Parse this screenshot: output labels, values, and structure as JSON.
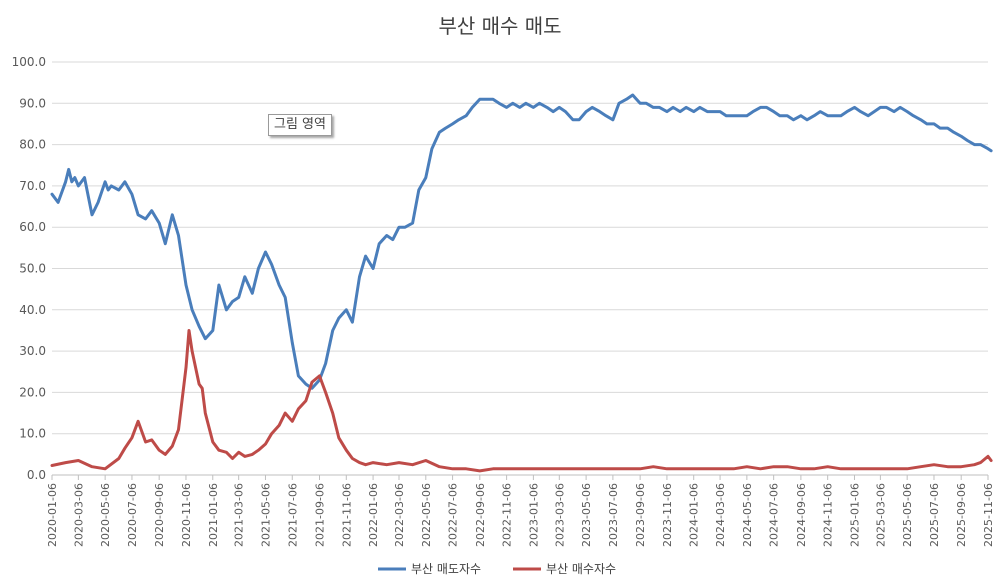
{
  "title": "부산 매수 매도",
  "annotation": "그림 영역",
  "chart_data": {
    "type": "line",
    "title": "부산 매수 매도",
    "xlabel": "",
    "ylabel": "",
    "ylim": [
      0,
      100
    ],
    "yticks": [
      "0.0",
      "10.0",
      "20.0",
      "30.0",
      "40.0",
      "50.0",
      "60.0",
      "70.0",
      "80.0",
      "90.0",
      "100.0"
    ],
    "xtick_labels": [
      "2020-01-06",
      "2020-03-06",
      "2020-05-06",
      "2020-07-06",
      "2020-09-06",
      "2020-11-06",
      "2021-01-06",
      "2021-03-06",
      "2021-05-06",
      "2021-07-06",
      "2021-09-06",
      "2021-11-06",
      "2022-01-06",
      "2022-03-06",
      "2022-05-06",
      "2022-07-06",
      "2022-09-06",
      "2022-11-06",
      "2023-01-06",
      "2023-03-06",
      "2023-05-06",
      "2023-07-06",
      "2023-09-06",
      "2023-11-06",
      "2024-01-06",
      "2024-03-06",
      "2024-05-06",
      "2024-07-06",
      "2024-09-06",
      "2024-11-06",
      "2025-01-06",
      "2025-03-06",
      "2025-05-06",
      "2025-07-06",
      "2025-09-06",
      "2025-11-06"
    ],
    "grid": true,
    "legend_position": "bottom",
    "series": [
      {
        "name": "부산 매도자수",
        "color": "#4a7ebb",
        "points": [
          [
            "2020-01-06",
            68
          ],
          [
            "2020-01-20",
            66
          ],
          [
            "2020-02-06",
            71
          ],
          [
            "2020-02-13",
            74
          ],
          [
            "2020-02-20",
            71
          ],
          [
            "2020-02-27",
            72
          ],
          [
            "2020-03-06",
            70
          ],
          [
            "2020-03-20",
            72
          ],
          [
            "2020-04-06",
            63
          ],
          [
            "2020-04-20",
            66
          ],
          [
            "2020-05-06",
            71
          ],
          [
            "2020-05-13",
            69
          ],
          [
            "2020-05-20",
            70
          ],
          [
            "2020-06-06",
            69
          ],
          [
            "2020-06-20",
            71
          ],
          [
            "2020-07-06",
            68
          ],
          [
            "2020-07-20",
            63
          ],
          [
            "2020-08-06",
            62
          ],
          [
            "2020-08-20",
            64
          ],
          [
            "2020-09-06",
            61
          ],
          [
            "2020-09-20",
            56
          ],
          [
            "2020-10-06",
            63
          ],
          [
            "2020-10-20",
            58
          ],
          [
            "2020-11-06",
            46
          ],
          [
            "2020-11-20",
            40
          ],
          [
            "2020-12-06",
            36
          ],
          [
            "2020-12-20",
            33
          ],
          [
            "2021-01-06",
            35
          ],
          [
            "2021-01-20",
            46
          ],
          [
            "2021-02-06",
            40
          ],
          [
            "2021-02-20",
            42
          ],
          [
            "2021-03-06",
            43
          ],
          [
            "2021-03-20",
            48
          ],
          [
            "2021-04-06",
            44
          ],
          [
            "2021-04-20",
            50
          ],
          [
            "2021-05-06",
            54
          ],
          [
            "2021-05-20",
            51
          ],
          [
            "2021-06-06",
            46
          ],
          [
            "2021-06-20",
            43
          ],
          [
            "2021-07-06",
            32
          ],
          [
            "2021-07-20",
            24
          ],
          [
            "2021-08-06",
            22
          ],
          [
            "2021-08-20",
            21
          ],
          [
            "2021-09-06",
            23
          ],
          [
            "2021-09-20",
            27
          ],
          [
            "2021-10-06",
            35
          ],
          [
            "2021-10-20",
            38
          ],
          [
            "2021-11-06",
            40
          ],
          [
            "2021-11-20",
            37
          ],
          [
            "2021-12-06",
            48
          ],
          [
            "2021-12-20",
            53
          ],
          [
            "2022-01-06",
            50
          ],
          [
            "2022-01-20",
            56
          ],
          [
            "2022-02-06",
            58
          ],
          [
            "2022-02-20",
            57
          ],
          [
            "2022-03-06",
            60
          ],
          [
            "2022-03-20",
            60
          ],
          [
            "2022-04-06",
            61
          ],
          [
            "2022-04-20",
            69
          ],
          [
            "2022-05-06",
            72
          ],
          [
            "2022-05-20",
            79
          ],
          [
            "2022-06-06",
            83
          ],
          [
            "2022-06-20",
            84
          ],
          [
            "2022-07-06",
            85
          ],
          [
            "2022-07-20",
            86
          ],
          [
            "2022-08-06",
            87
          ],
          [
            "2022-08-20",
            89
          ],
          [
            "2022-09-06",
            91
          ],
          [
            "2022-09-20",
            91
          ],
          [
            "2022-10-06",
            91
          ],
          [
            "2022-10-20",
            90
          ],
          [
            "2022-11-06",
            89
          ],
          [
            "2022-11-20",
            90
          ],
          [
            "2022-12-06",
            89
          ],
          [
            "2022-12-20",
            90
          ],
          [
            "2023-01-06",
            89
          ],
          [
            "2023-01-20",
            90
          ],
          [
            "2023-02-06",
            89
          ],
          [
            "2023-02-20",
            88
          ],
          [
            "2023-03-06",
            89
          ],
          [
            "2023-03-20",
            88
          ],
          [
            "2023-04-06",
            86
          ],
          [
            "2023-04-20",
            86
          ],
          [
            "2023-05-06",
            88
          ],
          [
            "2023-05-20",
            89
          ],
          [
            "2023-06-06",
            88
          ],
          [
            "2023-06-20",
            87
          ],
          [
            "2023-07-06",
            86
          ],
          [
            "2023-07-20",
            90
          ],
          [
            "2023-08-06",
            91
          ],
          [
            "2023-08-20",
            92
          ],
          [
            "2023-09-06",
            90
          ],
          [
            "2023-09-20",
            90
          ],
          [
            "2023-10-06",
            89
          ],
          [
            "2023-10-20",
            89
          ],
          [
            "2023-11-06",
            88
          ],
          [
            "2023-11-20",
            89
          ],
          [
            "2023-12-06",
            88
          ],
          [
            "2023-12-20",
            89
          ],
          [
            "2024-01-06",
            88
          ],
          [
            "2024-01-20",
            89
          ],
          [
            "2024-02-06",
            88
          ],
          [
            "2024-02-20",
            88
          ],
          [
            "2024-03-06",
            88
          ],
          [
            "2024-03-20",
            87
          ],
          [
            "2024-04-06",
            87
          ],
          [
            "2024-04-20",
            87
          ],
          [
            "2024-05-06",
            87
          ],
          [
            "2024-05-20",
            88
          ],
          [
            "2024-06-06",
            89
          ],
          [
            "2024-06-20",
            89
          ],
          [
            "2024-07-06",
            88
          ],
          [
            "2024-07-20",
            87
          ],
          [
            "2024-08-06",
            87
          ],
          [
            "2024-08-20",
            86
          ],
          [
            "2024-09-06",
            87
          ],
          [
            "2024-09-20",
            86
          ],
          [
            "2024-10-06",
            87
          ],
          [
            "2024-10-20",
            88
          ],
          [
            "2024-11-06",
            87
          ],
          [
            "2024-11-20",
            87
          ],
          [
            "2024-12-06",
            87
          ],
          [
            "2024-12-20",
            88
          ],
          [
            "2025-01-06",
            89
          ],
          [
            "2025-01-20",
            88
          ],
          [
            "2025-02-06",
            87
          ],
          [
            "2025-02-20",
            88
          ],
          [
            "2025-03-06",
            89
          ],
          [
            "2025-03-20",
            89
          ],
          [
            "2025-04-06",
            88
          ],
          [
            "2025-04-20",
            89
          ],
          [
            "2025-05-06",
            88
          ],
          [
            "2025-05-20",
            87
          ],
          [
            "2025-06-06",
            86
          ],
          [
            "2025-06-20",
            85
          ],
          [
            "2025-07-06",
            85
          ],
          [
            "2025-07-20",
            84
          ],
          [
            "2025-08-06",
            84
          ],
          [
            "2025-08-20",
            83
          ],
          [
            "2025-09-06",
            82
          ],
          [
            "2025-09-20",
            81
          ],
          [
            "2025-10-06",
            80
          ],
          [
            "2025-10-20",
            80
          ],
          [
            "2025-11-06",
            79
          ],
          [
            "2025-11-13",
            78.5
          ]
        ]
      },
      {
        "name": "부산 매수자수",
        "color": "#be4b48",
        "points": [
          [
            "2020-01-06",
            2.3
          ],
          [
            "2020-02-06",
            3.0
          ],
          [
            "2020-03-06",
            3.5
          ],
          [
            "2020-04-06",
            2.0
          ],
          [
            "2020-05-06",
            1.5
          ],
          [
            "2020-06-06",
            4.0
          ],
          [
            "2020-06-20",
            6.5
          ],
          [
            "2020-07-06",
            9.0
          ],
          [
            "2020-07-20",
            13.0
          ],
          [
            "2020-08-06",
            8.0
          ],
          [
            "2020-08-20",
            8.5
          ],
          [
            "2020-09-06",
            6.0
          ],
          [
            "2020-09-20",
            5.0
          ],
          [
            "2020-10-06",
            7.0
          ],
          [
            "2020-10-20",
            11.0
          ],
          [
            "2020-11-06",
            26.0
          ],
          [
            "2020-11-13",
            35.0
          ],
          [
            "2020-11-20",
            30.0
          ],
          [
            "2020-12-06",
            22.0
          ],
          [
            "2020-12-13",
            21.0
          ],
          [
            "2020-12-20",
            15.0
          ],
          [
            "2021-01-06",
            8.0
          ],
          [
            "2021-01-20",
            6.0
          ],
          [
            "2021-02-06",
            5.5
          ],
          [
            "2021-02-20",
            4.0
          ],
          [
            "2021-03-06",
            5.5
          ],
          [
            "2021-03-20",
            4.5
          ],
          [
            "2021-04-06",
            5.0
          ],
          [
            "2021-04-20",
            6.0
          ],
          [
            "2021-05-06",
            7.5
          ],
          [
            "2021-05-20",
            10.0
          ],
          [
            "2021-06-06",
            12.0
          ],
          [
            "2021-06-20",
            15.0
          ],
          [
            "2021-07-06",
            13.0
          ],
          [
            "2021-07-20",
            16.0
          ],
          [
            "2021-08-06",
            18.0
          ],
          [
            "2021-08-20",
            22.5
          ],
          [
            "2021-09-06",
            24.0
          ],
          [
            "2021-09-20",
            20.0
          ],
          [
            "2021-10-06",
            15.0
          ],
          [
            "2021-10-20",
            9.0
          ],
          [
            "2021-11-06",
            6.0
          ],
          [
            "2021-11-20",
            4.0
          ],
          [
            "2021-12-06",
            3.0
          ],
          [
            "2021-12-20",
            2.5
          ],
          [
            "2022-01-06",
            3.0
          ],
          [
            "2022-02-06",
            2.5
          ],
          [
            "2022-03-06",
            3.0
          ],
          [
            "2022-04-06",
            2.5
          ],
          [
            "2022-05-06",
            3.5
          ],
          [
            "2022-06-06",
            2.0
          ],
          [
            "2022-07-06",
            1.5
          ],
          [
            "2022-08-06",
            1.5
          ],
          [
            "2022-09-06",
            1.0
          ],
          [
            "2022-10-06",
            1.5
          ],
          [
            "2022-11-06",
            1.5
          ],
          [
            "2022-12-06",
            1.5
          ],
          [
            "2023-01-06",
            1.5
          ],
          [
            "2023-02-06",
            1.5
          ],
          [
            "2023-03-06",
            1.5
          ],
          [
            "2023-04-06",
            1.5
          ],
          [
            "2023-05-06",
            1.5
          ],
          [
            "2023-06-06",
            1.5
          ],
          [
            "2023-07-06",
            1.5
          ],
          [
            "2023-08-06",
            1.5
          ],
          [
            "2023-09-06",
            1.5
          ],
          [
            "2023-10-06",
            2.0
          ],
          [
            "2023-11-06",
            1.5
          ],
          [
            "2023-12-06",
            1.5
          ],
          [
            "2024-01-06",
            1.5
          ],
          [
            "2024-02-06",
            1.5
          ],
          [
            "2024-03-06",
            1.5
          ],
          [
            "2024-04-06",
            1.5
          ],
          [
            "2024-05-06",
            2.0
          ],
          [
            "2024-06-06",
            1.5
          ],
          [
            "2024-07-06",
            2.0
          ],
          [
            "2024-08-06",
            2.0
          ],
          [
            "2024-09-06",
            1.5
          ],
          [
            "2024-10-06",
            1.5
          ],
          [
            "2024-11-06",
            2.0
          ],
          [
            "2024-12-06",
            1.5
          ],
          [
            "2025-01-06",
            1.5
          ],
          [
            "2025-02-06",
            1.5
          ],
          [
            "2025-03-06",
            1.5
          ],
          [
            "2025-04-06",
            1.5
          ],
          [
            "2025-05-06",
            1.5
          ],
          [
            "2025-06-06",
            2.0
          ],
          [
            "2025-07-06",
            2.5
          ],
          [
            "2025-08-06",
            2.0
          ],
          [
            "2025-09-06",
            2.0
          ],
          [
            "2025-10-06",
            2.5
          ],
          [
            "2025-10-20",
            3.0
          ],
          [
            "2025-11-06",
            4.5
          ],
          [
            "2025-11-13",
            3.5
          ]
        ]
      }
    ]
  }
}
